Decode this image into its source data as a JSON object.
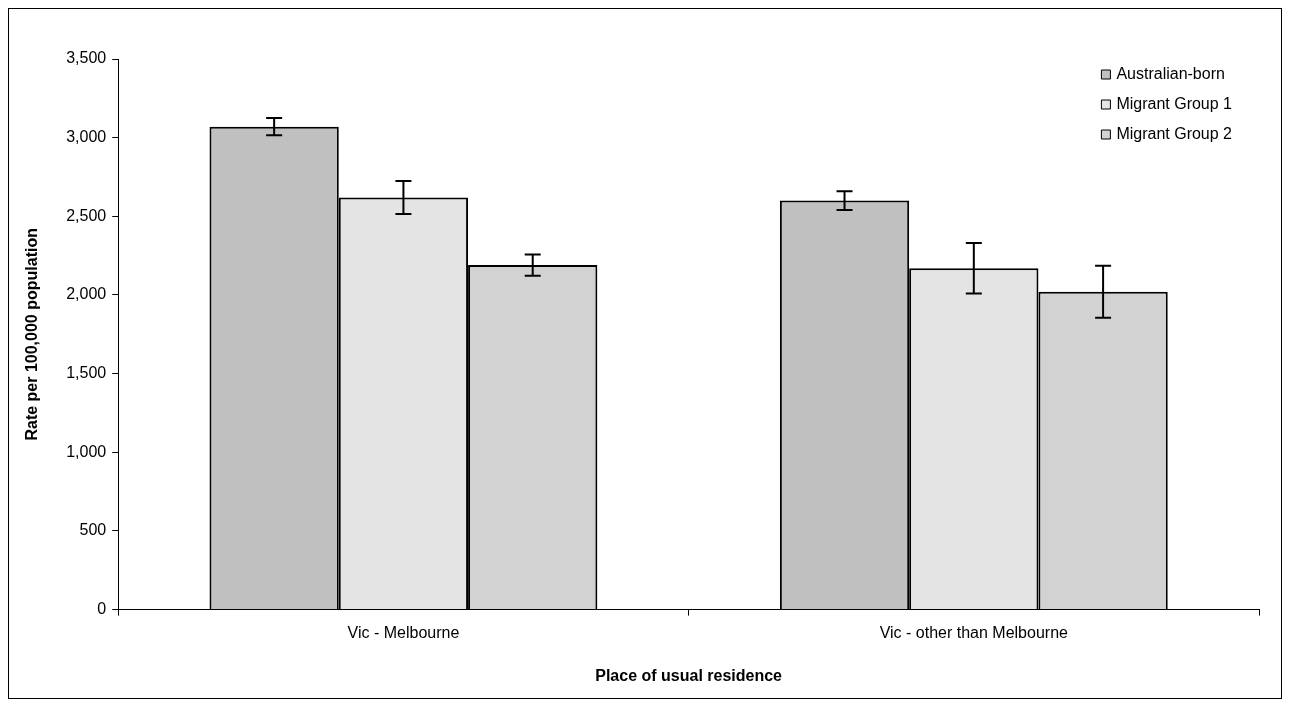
{
  "chart_data": {
    "type": "bar",
    "xlabel": "Place of usual residence",
    "ylabel": "Rate per 100,000 population",
    "categories": [
      "Vic - Melbourne",
      "Vic - other than Melbourne"
    ],
    "series": [
      {
        "name": "Australian-born",
        "color": "#c0c0c0",
        "values": [
          3070,
          2600
        ],
        "errors": [
          55,
          60
        ]
      },
      {
        "name": "Migrant Group 1",
        "color": "#e4e4e4",
        "values": [
          2620,
          2170
        ],
        "errors": [
          105,
          160
        ]
      },
      {
        "name": "Migrant Group 2",
        "color": "#d2d2d2",
        "values": [
          2190,
          2020
        ],
        "errors": [
          68,
          165
        ]
      }
    ],
    "ylim": [
      0,
      3500
    ],
    "yticks": [
      0,
      500,
      {
        "value": 1000,
        "label": "1,000"
      },
      {
        "value": 1500,
        "label": "1,500"
      },
      {
        "value": 2000,
        "label": "2,000"
      },
      {
        "value": 2500,
        "label": "2,500"
      },
      {
        "value": 3000,
        "label": "3,000"
      },
      {
        "value": 3500,
        "label": "3,500"
      }
    ],
    "grid": false,
    "legend": "top right"
  }
}
